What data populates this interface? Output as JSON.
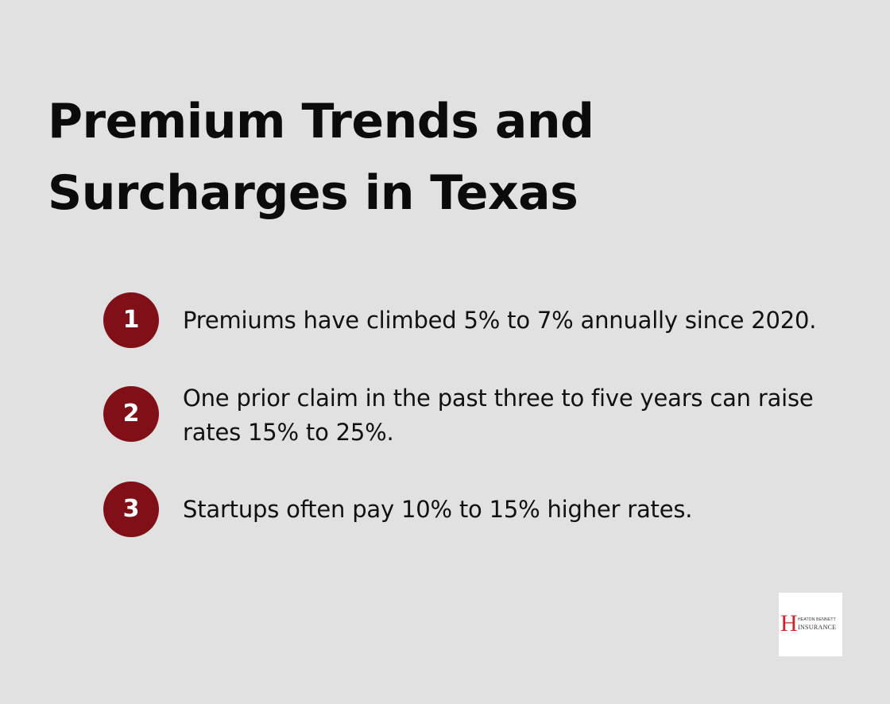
{
  "title": {
    "line1": "Premium Trends and",
    "line2": "Surcharges in Texas"
  },
  "items": [
    {
      "number": "1",
      "text": "Premiums have climbed 5% to 7% annually since 2020."
    },
    {
      "number": "2",
      "text": "One prior claim in the past three to five years can raise rates 15% to 25%."
    },
    {
      "number": "3",
      "text": "Startups often pay 10% to 15% higher rates."
    }
  ],
  "logo": {
    "mark": "H",
    "top_text": "HEATON BENNETT",
    "bottom_text": "INSURANCE"
  },
  "colors": {
    "background": "#e0e1e0",
    "badge": "#800f17",
    "logo_mark": "#d1232a"
  }
}
